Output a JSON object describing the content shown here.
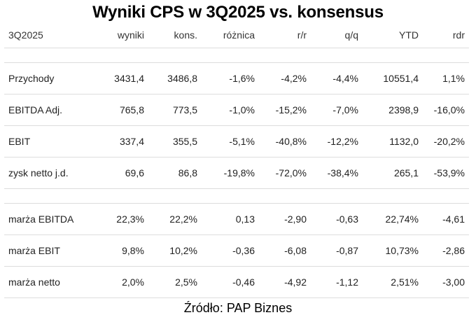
{
  "title": "Wyniki CPS w 3Q2025 vs. konsensus",
  "table": {
    "headers": [
      "3Q2025",
      "wyniki",
      "kons.",
      "różnica",
      "r/r",
      "q/q",
      "YTD",
      "rdr"
    ],
    "rows": [
      [
        "",
        "",
        "",
        "",
        "",
        "",
        "",
        ""
      ],
      [
        "Przychody",
        "3431,4",
        "3486,8",
        "-1,6%",
        "-4,2%",
        "-4,4%",
        "10551,4",
        "1,1%"
      ],
      [
        "EBITDA Adj.",
        "765,8",
        "773,5",
        "-1,0%",
        "-15,2%",
        "-7,0%",
        "2398,9",
        "-16,0%"
      ],
      [
        "EBIT",
        "337,4",
        "355,5",
        "-5,1%",
        "-40,8%",
        "-12,2%",
        "1132,0",
        "-20,2%"
      ],
      [
        "zysk netto j.d.",
        "69,6",
        "86,8",
        "-19,8%",
        "-72,0%",
        "-38,4%",
        "265,1",
        "-53,9%"
      ],
      [
        "",
        "",
        "",
        "",
        "",
        "",
        "",
        ""
      ],
      [
        "marża EBITDA",
        "22,3%",
        "22,2%",
        "0,13",
        "-2,90",
        "-0,63",
        "22,74%",
        "-4,61"
      ],
      [
        "marża EBIT",
        "9,8%",
        "10,2%",
        "-0,36",
        "-6,08",
        "-0,87",
        "10,73%",
        "-2,86"
      ],
      [
        "marża netto",
        "2,0%",
        "2,5%",
        "-0,46",
        "-4,92",
        "-1,12",
        "2,51%",
        "-3,00"
      ]
    ]
  },
  "source": "Źródło: PAP Biznes"
}
